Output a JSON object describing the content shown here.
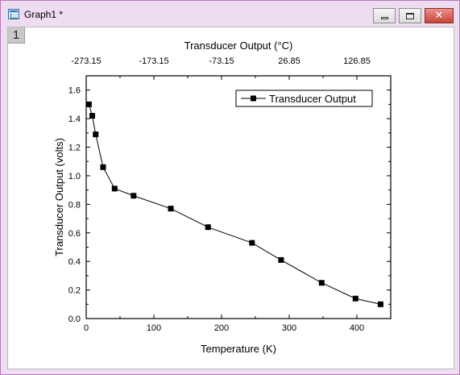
{
  "window": {
    "title": "Graph1 *",
    "layer_label": "1",
    "close_glyph": "✕"
  },
  "chart_data": {
    "type": "line",
    "title": "",
    "xlabel": "Temperature (K)",
    "ylabel": "Transducer Output (volts)",
    "top_axis_label": "Transducer Output (°C)",
    "xlim": [
      0,
      450
    ],
    "ylim": [
      0.0,
      1.7
    ],
    "x_ticks": [
      "0",
      "100",
      "200",
      "300",
      "400"
    ],
    "y_ticks": [
      "0.0",
      "0.2",
      "0.4",
      "0.6",
      "0.8",
      "1.0",
      "1.2",
      "1.4",
      "1.6"
    ],
    "top_ticks": [
      "-273.15",
      "-173.15",
      "-73.15",
      "26.85",
      "126.85"
    ],
    "series": [
      {
        "name": "Transducer Output",
        "marker": "square",
        "color": "#000000",
        "x": [
          4,
          9,
          14,
          25,
          42,
          70,
          125,
          180,
          245,
          288,
          348,
          398,
          435
        ],
        "y": [
          1.5,
          1.42,
          1.29,
          1.06,
          0.91,
          0.86,
          0.77,
          0.64,
          0.53,
          0.41,
          0.25,
          0.14,
          0.1
        ]
      }
    ],
    "legend_position": "top-right",
    "grid": false
  }
}
